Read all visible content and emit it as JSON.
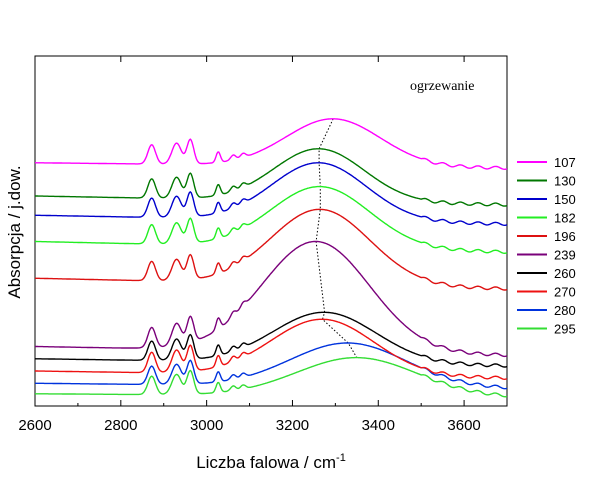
{
  "chart_data": {
    "type": "line",
    "title": "",
    "xlabel": "Liczba falowa / cm",
    "xlabel_sup": "-1",
    "ylabel": "Absorpcja / j.dow.",
    "xlim": [
      2600,
      3700
    ],
    "xticks": [
      2600,
      2800,
      3000,
      3200,
      3400,
      3600
    ],
    "yticks_shown": false,
    "grid": false,
    "legend_position": "right",
    "annotation": "ogrzewanie",
    "series": [
      {
        "name": "107",
        "color": "#ff00ff",
        "baseline": 0.695,
        "band_peak": 3295,
        "band_height": 0.135,
        "band_width": 110,
        "ch_scale": 1.0,
        "end_offset": -0.015
      },
      {
        "name": "130",
        "color": "#007700",
        "baseline": 0.6,
        "band_peak": 3262,
        "band_height": 0.15,
        "band_width": 105,
        "ch_scale": 1.0,
        "end_offset": -0.025
      },
      {
        "name": "150",
        "color": "#0000cc",
        "baseline": 0.545,
        "band_peak": 3262,
        "band_height": 0.165,
        "band_width": 110,
        "ch_scale": 1.0,
        "end_offset": -0.025
      },
      {
        "name": "182",
        "color": "#22ee22",
        "baseline": 0.47,
        "band_peak": 3265,
        "band_height": 0.175,
        "band_width": 115,
        "ch_scale": 1.0,
        "end_offset": -0.03
      },
      {
        "name": "196",
        "color": "#dd1111",
        "baseline": 0.365,
        "band_peak": 3265,
        "band_height": 0.215,
        "band_width": 115,
        "ch_scale": 1.0,
        "end_offset": -0.03
      },
      {
        "name": "239",
        "color": "#7a007a",
        "baseline": 0.17,
        "band_peak": 3255,
        "band_height": 0.315,
        "band_width": 125,
        "ch_scale": 1.05,
        "end_offset": -0.025
      },
      {
        "name": "260",
        "color": "#000000",
        "baseline": 0.135,
        "band_peak": 3275,
        "band_height": 0.145,
        "band_width": 120,
        "ch_scale": 1.0,
        "end_offset": -0.02
      },
      {
        "name": "270",
        "color": "#ee1111",
        "baseline": 0.1,
        "band_peak": 3270,
        "band_height": 0.16,
        "band_width": 120,
        "ch_scale": 1.05,
        "end_offset": -0.02
      },
      {
        "name": "280",
        "color": "#0033dd",
        "baseline": 0.065,
        "band_peak": 3330,
        "band_height": 0.125,
        "band_width": 135,
        "ch_scale": 0.95,
        "end_offset": -0.015
      },
      {
        "name": "295",
        "color": "#33dd33",
        "baseline": 0.035,
        "band_peak": 3350,
        "band_height": 0.11,
        "band_width": 140,
        "ch_scale": 0.95,
        "end_offset": -0.01
      }
    ],
    "ch_peaks": [
      {
        "x": 2872,
        "h": 0.055,
        "w": 9
      },
      {
        "x": 2930,
        "h": 0.06,
        "w": 11
      },
      {
        "x": 2962,
        "h": 0.07,
        "w": 8
      },
      {
        "x": 3027,
        "h": 0.03,
        "w": 5
      },
      {
        "x": 3062,
        "h": 0.014,
        "w": 6
      },
      {
        "x": 3085,
        "h": 0.012,
        "w": 6
      }
    ],
    "trend_line": [
      {
        "x": 3295,
        "series": "107"
      },
      {
        "x": 3262,
        "series": "130"
      },
      {
        "x": 3262,
        "series": "150"
      },
      {
        "x": 3265,
        "series": "182"
      },
      {
        "x": 3265,
        "series": "196"
      },
      {
        "x": 3255,
        "series": "239"
      },
      {
        "x": 3275,
        "series": "260"
      },
      {
        "x": 3270,
        "series": "270"
      },
      {
        "x": 3330,
        "series": "280"
      },
      {
        "x": 3350,
        "series": "295"
      }
    ]
  }
}
